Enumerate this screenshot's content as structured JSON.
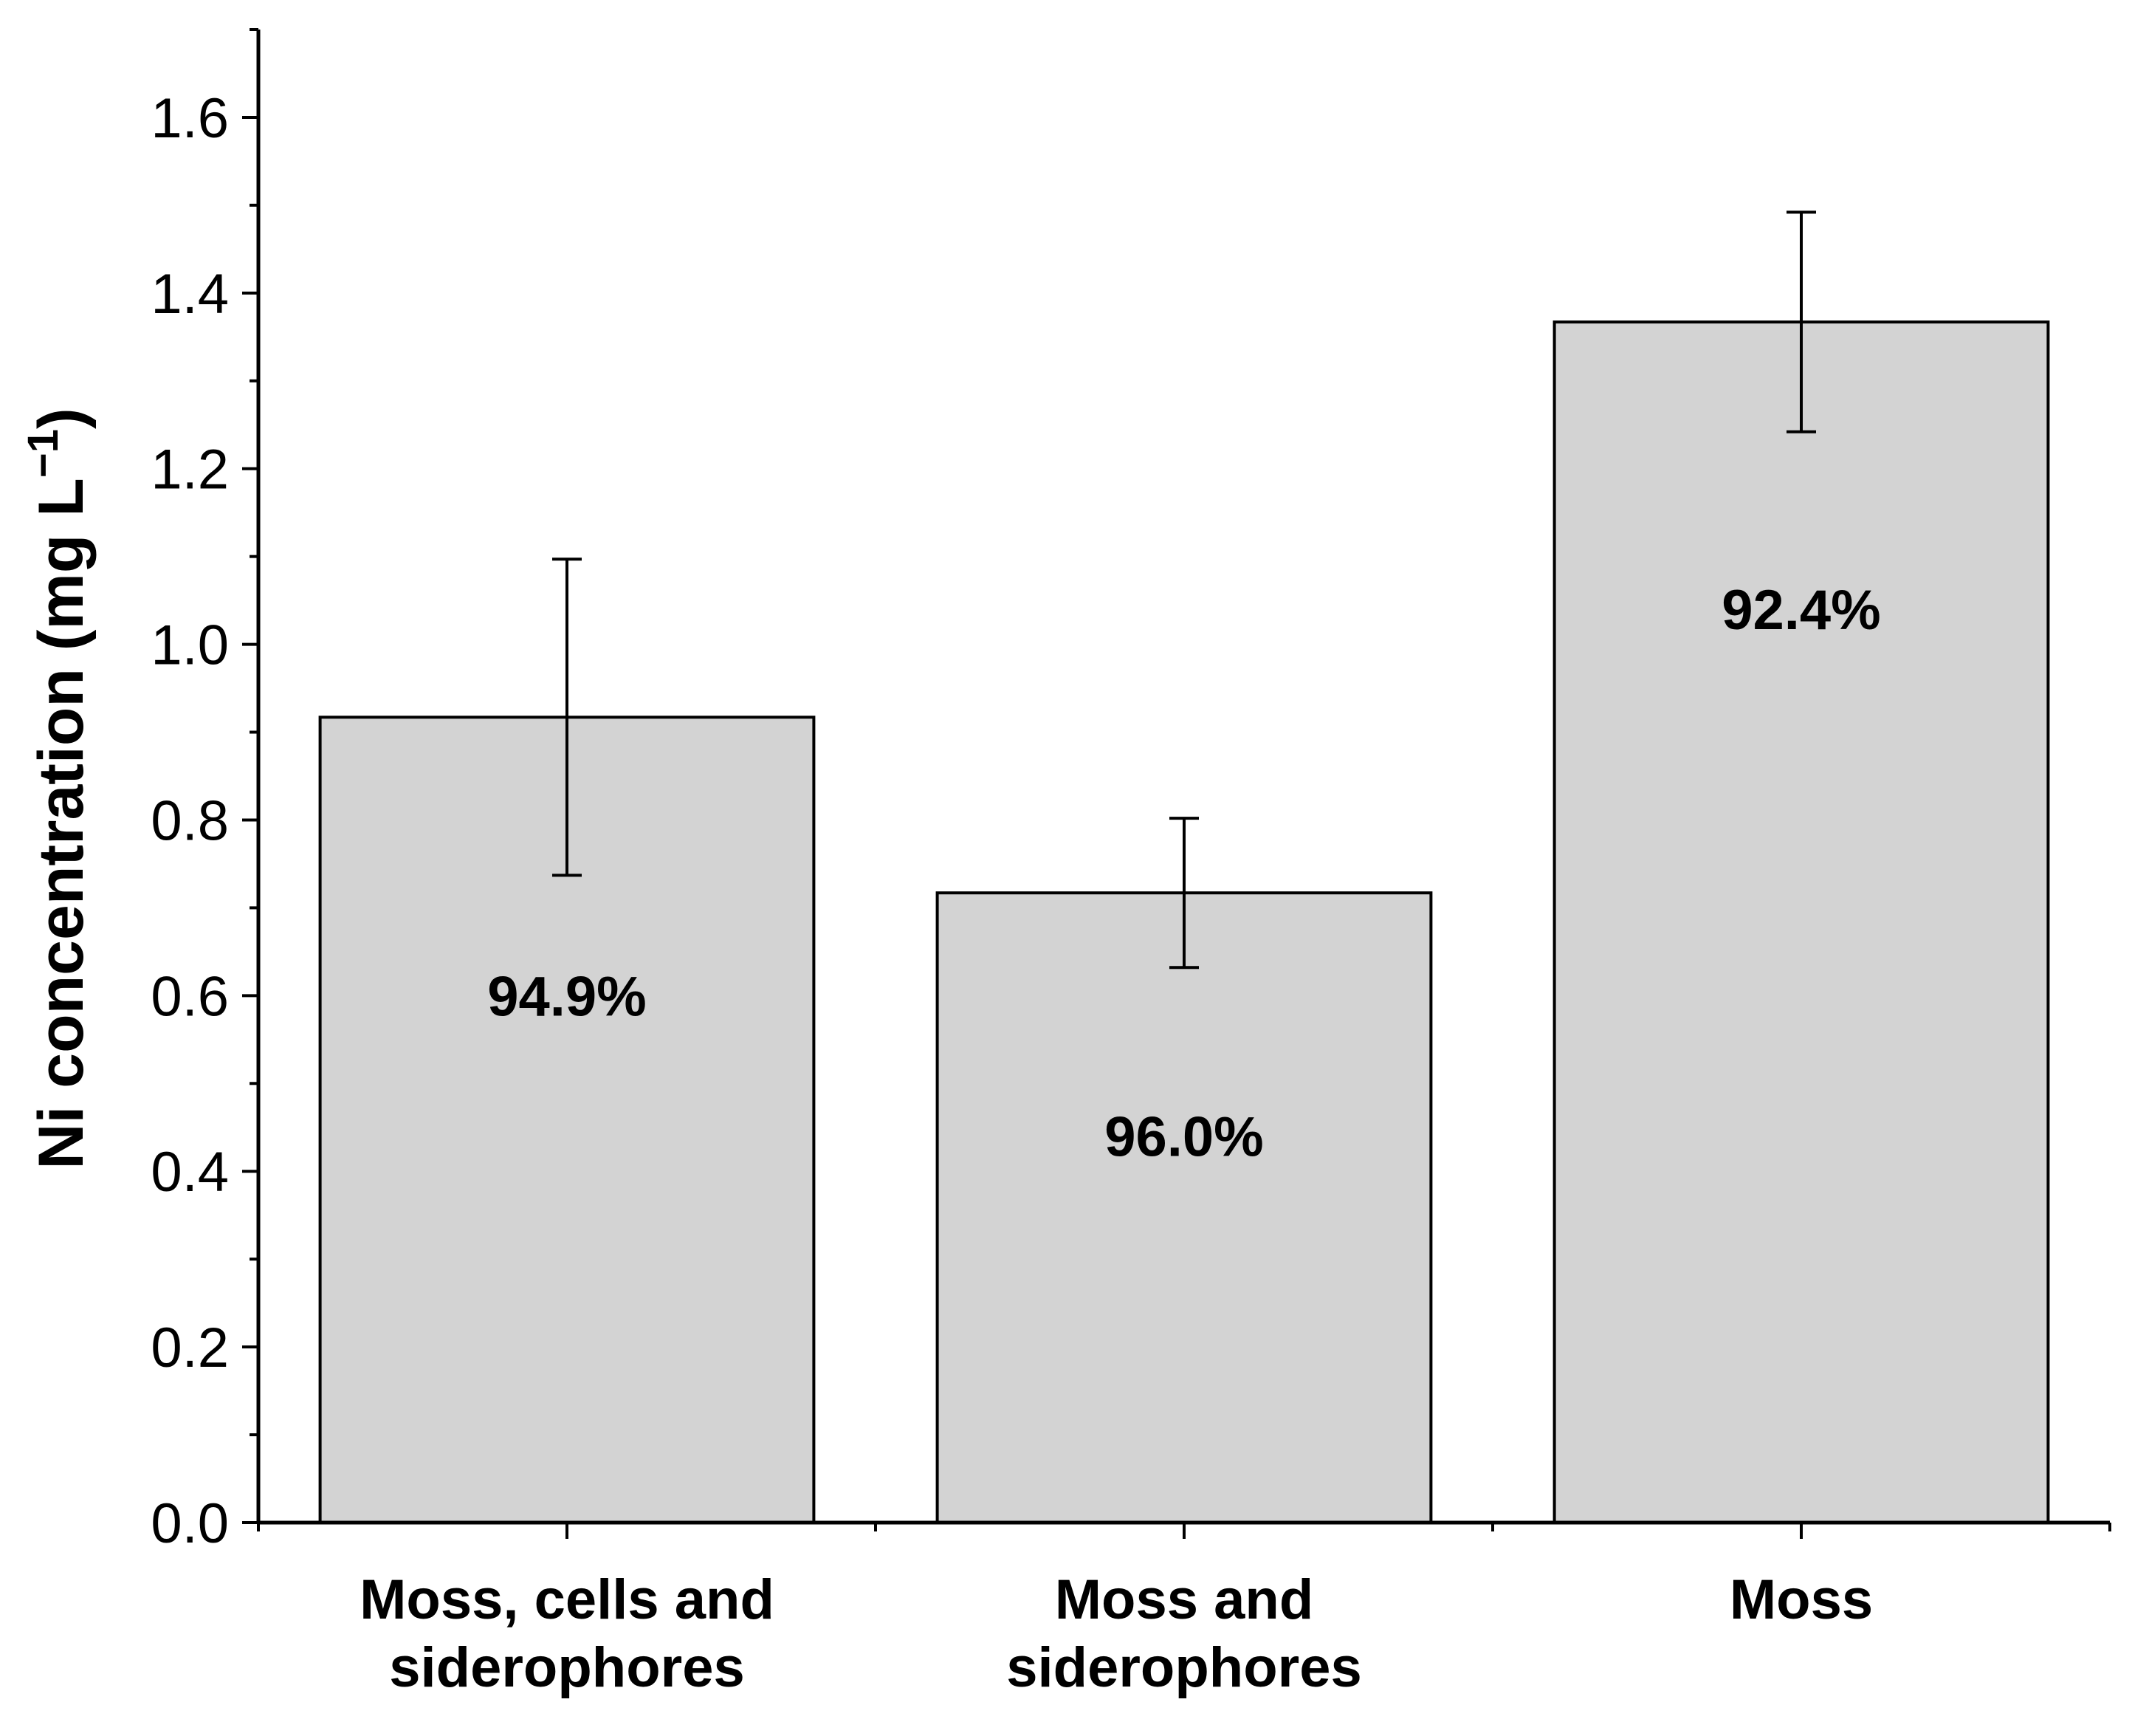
{
  "chart_data": {
    "type": "bar",
    "title": "",
    "xlabel": "",
    "ylabel": "Ni concentration (mg L",
    "ylabel_superscript": "−1",
    "ylabel_suffix": ")",
    "ylim": [
      0,
      1.7
    ],
    "y_ticks": [
      "0.0",
      "0.2",
      "0.4",
      "0.6",
      "0.8",
      "1.0",
      "1.2",
      "1.4",
      "1.6"
    ],
    "y_tick_values": [
      0,
      0.2,
      0.4,
      0.6,
      0.8,
      1.0,
      1.2,
      1.4,
      1.6
    ],
    "y_minor_step": 0.1,
    "categories": [
      [
        "Moss, cells and",
        "siderophores"
      ],
      [
        "Moss and",
        "siderophores"
      ],
      [
        "Moss"
      ]
    ],
    "values": [
      0.917,
      0.717,
      1.367
    ],
    "error_low": [
      0.737,
      0.632,
      1.242
    ],
    "error_high": [
      1.097,
      0.802,
      1.492
    ],
    "annotations": [
      "94.9%",
      "96.0%",
      "92.4%"
    ],
    "annotation_values": [
      0.6,
      0.44,
      1.04
    ],
    "bar_color": "#d3d3d3",
    "edge_color": "#000000",
    "grid": false,
    "legend": "none"
  }
}
